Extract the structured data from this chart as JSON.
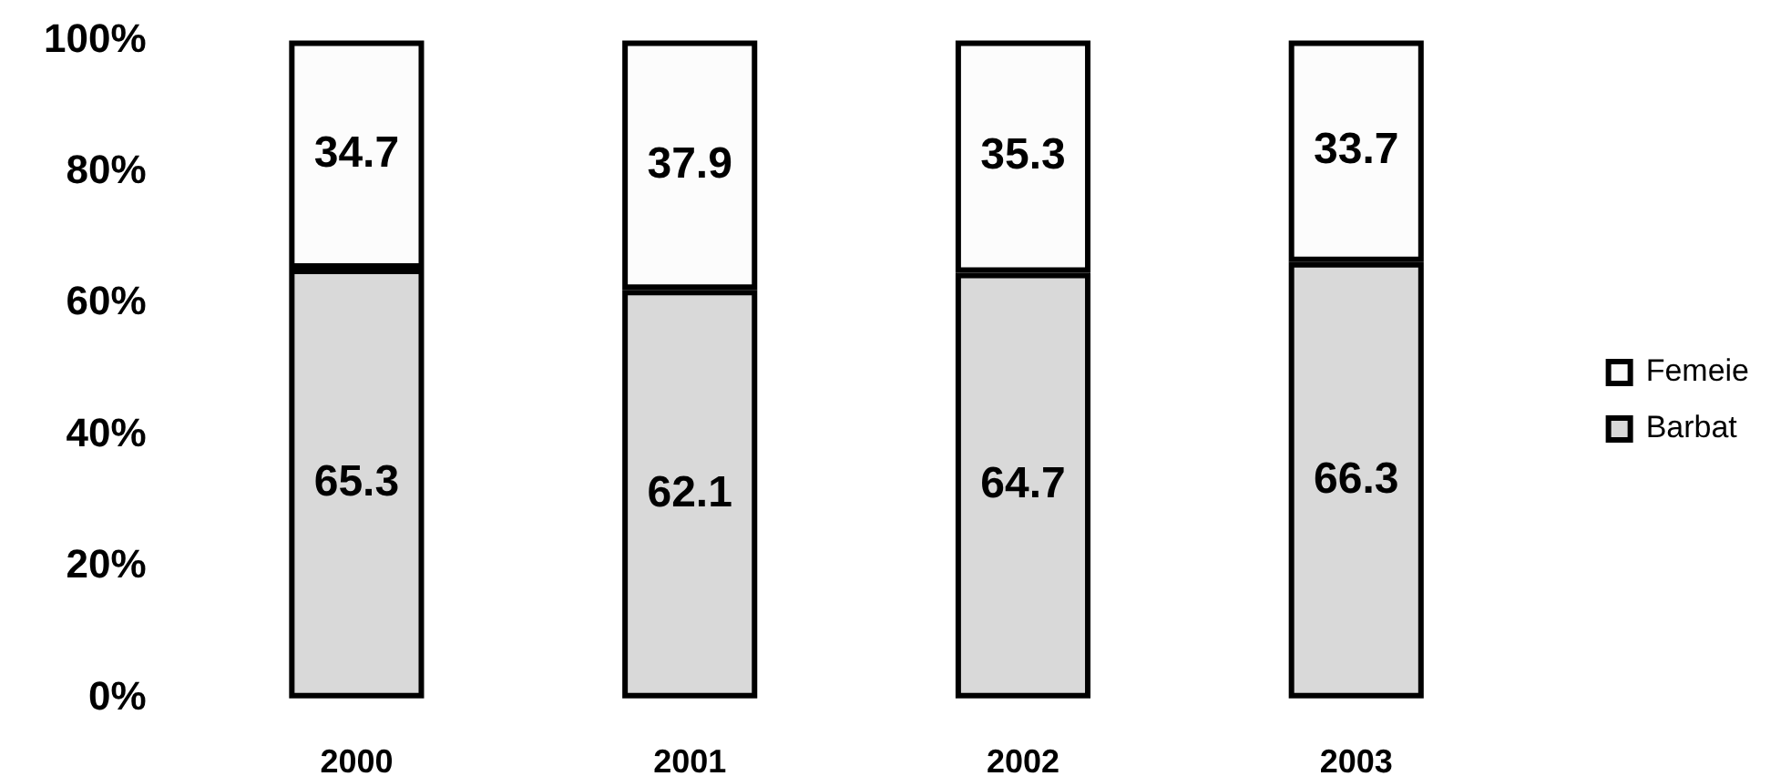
{
  "chart_data": {
    "type": "bar",
    "categories": [
      "2000",
      "2001",
      "2002",
      "2003"
    ],
    "series": [
      {
        "name": "Barbat",
        "color": "#d9d9d9",
        "values": [
          65.3,
          62.1,
          64.7,
          66.3
        ]
      },
      {
        "name": "Femeie",
        "color": "#fcfcfc",
        "values": [
          34.7,
          37.9,
          35.3,
          33.7
        ]
      }
    ],
    "stacked": true,
    "ylim": [
      0,
      100
    ],
    "yticks": [
      {
        "value": 0,
        "label": "0%"
      },
      {
        "value": 20,
        "label": "20%"
      },
      {
        "value": 40,
        "label": "40%"
      },
      {
        "value": 60,
        "label": "60%"
      },
      {
        "value": 80,
        "label": "80%"
      },
      {
        "value": 100,
        "label": "100%"
      }
    ],
    "grid": false,
    "legend": "right",
    "data_labels": true
  }
}
